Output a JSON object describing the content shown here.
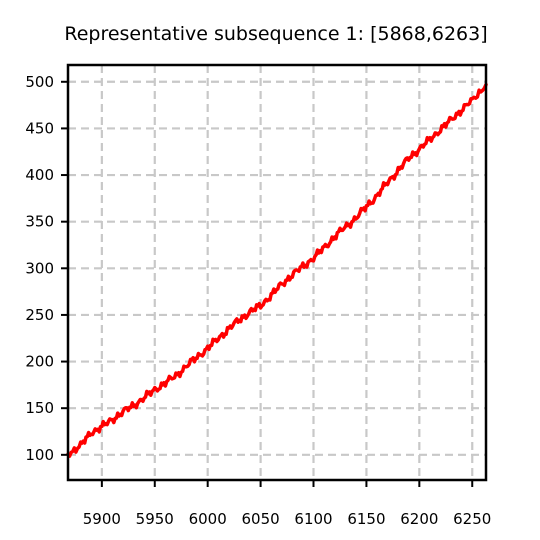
{
  "chart_data": {
    "type": "line",
    "title": "Representative subsequence 1: [5868,6263]",
    "xlabel": "",
    "ylabel": "",
    "xlim": [
      5868,
      6263
    ],
    "ylim": [
      73,
      518
    ],
    "x_ticks": [
      5900,
      5950,
      6000,
      6050,
      6100,
      6150,
      6200,
      6250
    ],
    "y_ticks": [
      100,
      150,
      200,
      250,
      300,
      350,
      400,
      450,
      500
    ],
    "grid": true,
    "series": [
      {
        "name": "",
        "color": "#ff0000",
        "x": [
          5868,
          5880,
          5890,
          5900,
          5910,
          5920,
          5930,
          5940,
          5950,
          5960,
          5970,
          5980,
          5990,
          6000,
          6010,
          6020,
          6030,
          6040,
          6050,
          6060,
          6070,
          6080,
          6090,
          6100,
          6110,
          6120,
          6130,
          6140,
          6150,
          6160,
          6170,
          6180,
          6190,
          6200,
          6210,
          6220,
          6230,
          6240,
          6250,
          6263
        ],
        "y": [
          101,
          110,
          124,
          130,
          138,
          146,
          153,
          161,
          170,
          177,
          185,
          195,
          205,
          214,
          225,
          235,
          245,
          253,
          260,
          271,
          283,
          293,
          302,
          311,
          322,
          334,
          344,
          354,
          366,
          378,
          392,
          405,
          418,
          428,
          438,
          449,
          459,
          470,
          480,
          497
        ]
      }
    ]
  }
}
